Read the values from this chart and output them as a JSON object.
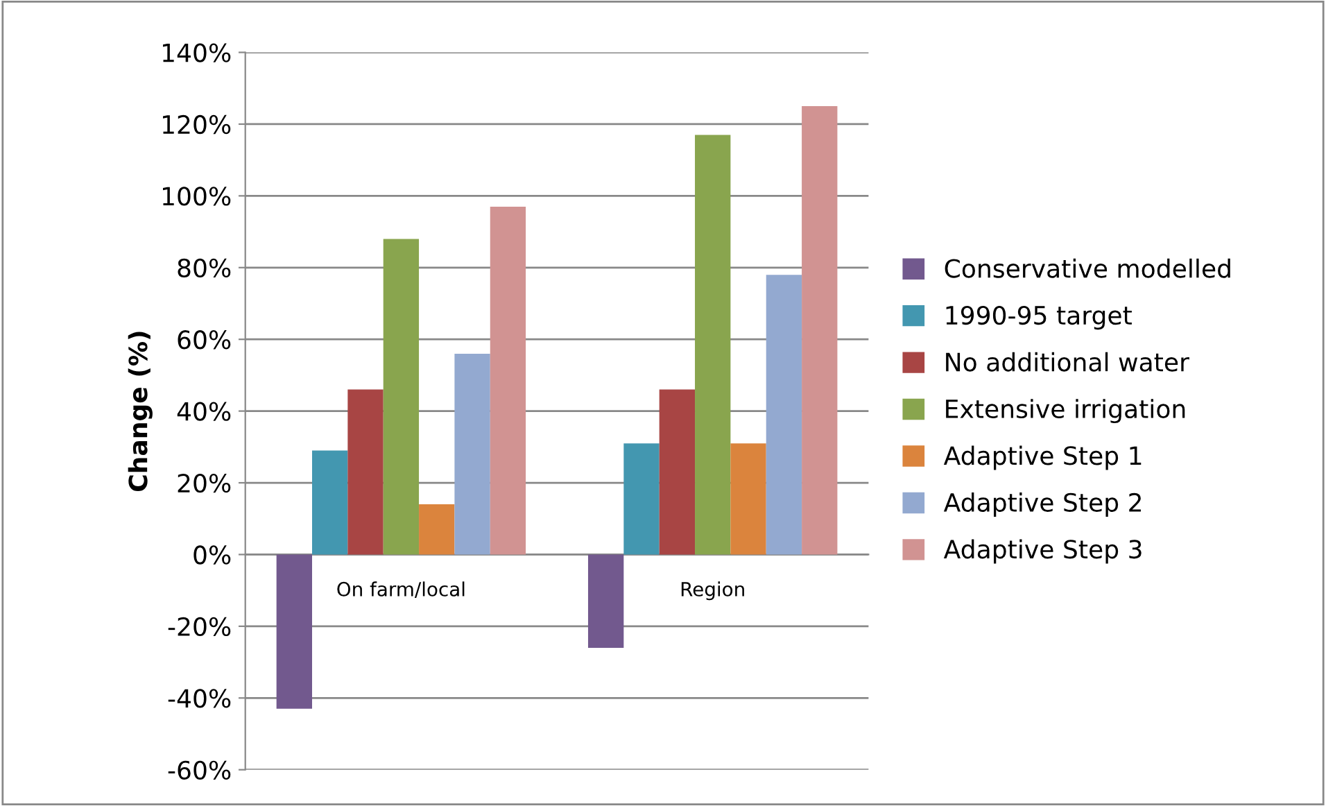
{
  "chart_data": {
    "type": "bar",
    "ylabel": "Change (%)",
    "categories": [
      "On farm/local",
      "Region"
    ],
    "series": [
      {
        "name": "Conservative modelled",
        "color": "#72598e",
        "values": [
          -43,
          -26
        ]
      },
      {
        "name": "1990-95 target",
        "color": "#4397b0",
        "values": [
          29,
          31
        ]
      },
      {
        "name": "No additional water",
        "color": "#a84544",
        "values": [
          46,
          46
        ]
      },
      {
        "name": "Extensive irrigation",
        "color": "#89a54e",
        "values": [
          88,
          117
        ]
      },
      {
        "name": "Adaptive Step 1",
        "color": "#db843d",
        "values": [
          14,
          31
        ]
      },
      {
        "name": "Adaptive Step 2",
        "color": "#93a9d0",
        "values": [
          56,
          78
        ]
      },
      {
        "name": "Adaptive Step 3",
        "color": "#d19392",
        "values": [
          97,
          125
        ]
      }
    ],
    "ylim": [
      -60,
      140
    ],
    "yticks": [
      {
        "value": -60,
        "label": "-60%"
      },
      {
        "value": -40,
        "label": "-40%"
      },
      {
        "value": -20,
        "label": "-20%"
      },
      {
        "value": 0,
        "label": "0%"
      },
      {
        "value": 20,
        "label": "20%"
      },
      {
        "value": 40,
        "label": "40%"
      },
      {
        "value": 60,
        "label": "60%"
      },
      {
        "value": 80,
        "label": "80%"
      },
      {
        "value": 100,
        "label": "100%"
      },
      {
        "value": 120,
        "label": "120%"
      },
      {
        "value": 140,
        "label": "140%"
      }
    ],
    "grid": "y",
    "legend": "right"
  }
}
